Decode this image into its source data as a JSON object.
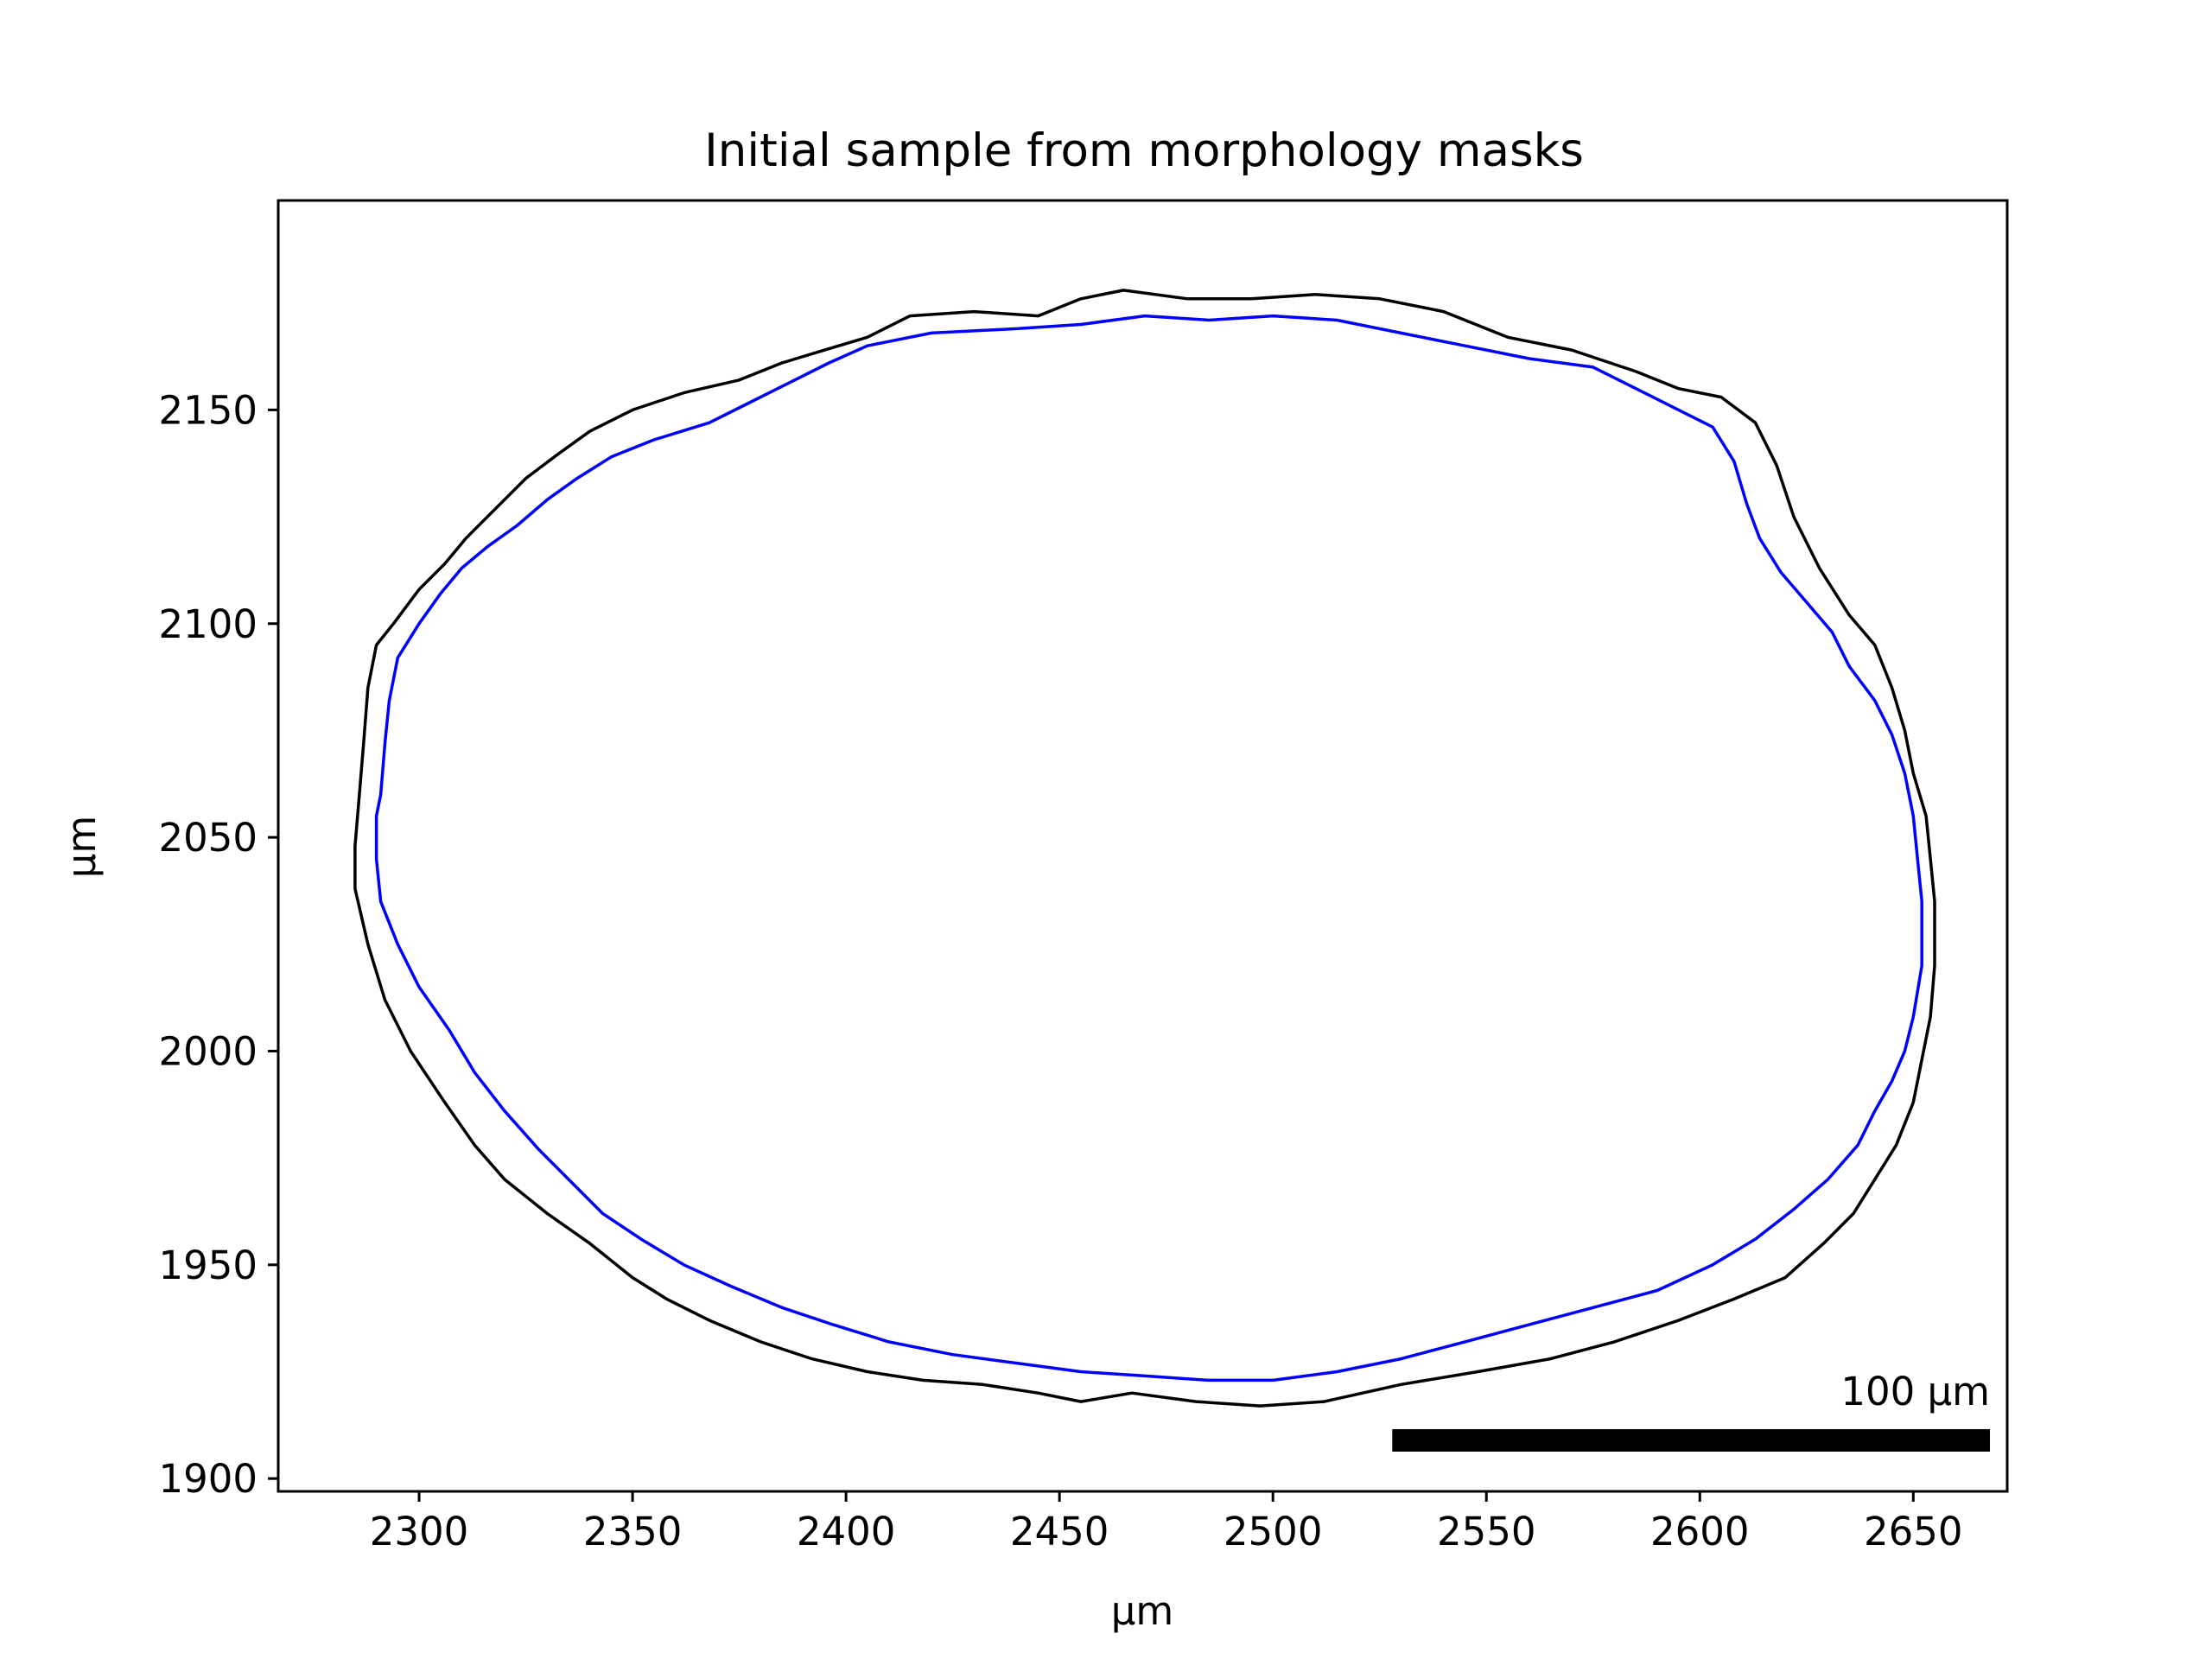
{
  "chart_data": {
    "type": "line",
    "title": "Initial sample from morphology masks",
    "xlabel": "µm",
    "ylabel": "µm",
    "xlim": [
      2267,
      2672
    ],
    "ylim": [
      1897,
      2199
    ],
    "xticks": [
      2300,
      2350,
      2400,
      2450,
      2500,
      2550,
      2600,
      2650
    ],
    "yticks": [
      1900,
      1950,
      2000,
      2050,
      2100,
      2150
    ],
    "grid": false,
    "legend": null,
    "series": [
      {
        "color": "#000000",
        "points": [
          [
            2286,
            2060
          ],
          [
            2287,
            2072
          ],
          [
            2288,
            2085
          ],
          [
            2290,
            2095
          ],
          [
            2294,
            2100
          ],
          [
            2300,
            2108
          ],
          [
            2306,
            2114
          ],
          [
            2311,
            2120
          ],
          [
            2318,
            2127
          ],
          [
            2325,
            2134
          ],
          [
            2333,
            2140
          ],
          [
            2340,
            2145
          ],
          [
            2350,
            2150
          ],
          [
            2362,
            2154
          ],
          [
            2375,
            2157
          ],
          [
            2385,
            2161
          ],
          [
            2395,
            2164
          ],
          [
            2405,
            2167
          ],
          [
            2415,
            2172
          ],
          [
            2430,
            2173
          ],
          [
            2445,
            2172
          ],
          [
            2455,
            2176
          ],
          [
            2465,
            2178
          ],
          [
            2480,
            2176
          ],
          [
            2495,
            2176
          ],
          [
            2510,
            2177
          ],
          [
            2525,
            2176
          ],
          [
            2540,
            2173
          ],
          [
            2555,
            2167
          ],
          [
            2570,
            2164
          ],
          [
            2585,
            2159
          ],
          [
            2595,
            2155
          ],
          [
            2605,
            2153
          ],
          [
            2613,
            2147
          ],
          [
            2618,
            2137
          ],
          [
            2622,
            2125
          ],
          [
            2628,
            2113
          ],
          [
            2635,
            2102
          ],
          [
            2641,
            2095
          ],
          [
            2645,
            2085
          ],
          [
            2648,
            2075
          ],
          [
            2650,
            2065
          ],
          [
            2653,
            2055
          ],
          [
            2654,
            2045
          ],
          [
            2655,
            2035
          ],
          [
            2655,
            2020
          ],
          [
            2654,
            2008
          ],
          [
            2652,
            1998
          ],
          [
            2650,
            1988
          ],
          [
            2646,
            1978
          ],
          [
            2641,
            1970
          ],
          [
            2636,
            1962
          ],
          [
            2629,
            1955
          ],
          [
            2620,
            1947
          ],
          [
            2608,
            1942
          ],
          [
            2595,
            1937
          ],
          [
            2580,
            1932
          ],
          [
            2565,
            1928
          ],
          [
            2548,
            1925
          ],
          [
            2530,
            1922
          ],
          [
            2512,
            1918
          ],
          [
            2497,
            1917
          ],
          [
            2482,
            1918
          ],
          [
            2467,
            1920
          ],
          [
            2455,
            1918
          ],
          [
            2445,
            1920
          ],
          [
            2432,
            1922
          ],
          [
            2418,
            1923
          ],
          [
            2405,
            1925
          ],
          [
            2392,
            1928
          ],
          [
            2380,
            1932
          ],
          [
            2368,
            1937
          ],
          [
            2358,
            1942
          ],
          [
            2350,
            1947
          ],
          [
            2340,
            1955
          ],
          [
            2330,
            1962
          ],
          [
            2320,
            1970
          ],
          [
            2313,
            1978
          ],
          [
            2306,
            1988
          ],
          [
            2298,
            2000
          ],
          [
            2292,
            2012
          ],
          [
            2288,
            2025
          ],
          [
            2285,
            2038
          ],
          [
            2285,
            2048
          ]
        ]
      },
      {
        "color": "#0000ff",
        "points": [
          [
            2291,
            2060
          ],
          [
            2292,
            2072
          ],
          [
            2293,
            2082
          ],
          [
            2295,
            2092
          ],
          [
            2300,
            2100
          ],
          [
            2305,
            2107
          ],
          [
            2310,
            2113
          ],
          [
            2316,
            2118
          ],
          [
            2323,
            2123
          ],
          [
            2330,
            2129
          ],
          [
            2337,
            2134
          ],
          [
            2345,
            2139
          ],
          [
            2355,
            2143
          ],
          [
            2368,
            2147
          ],
          [
            2378,
            2152
          ],
          [
            2388,
            2157
          ],
          [
            2396,
            2161
          ],
          [
            2405,
            2165
          ],
          [
            2420,
            2168
          ],
          [
            2440,
            2169
          ],
          [
            2455,
            2170
          ],
          [
            2470,
            2172
          ],
          [
            2485,
            2171
          ],
          [
            2500,
            2172
          ],
          [
            2515,
            2171
          ],
          [
            2530,
            2168
          ],
          [
            2545,
            2165
          ],
          [
            2560,
            2162
          ],
          [
            2575,
            2160
          ],
          [
            2585,
            2155
          ],
          [
            2595,
            2150
          ],
          [
            2603,
            2146
          ],
          [
            2608,
            2138
          ],
          [
            2611,
            2128
          ],
          [
            2614,
            2120
          ],
          [
            2619,
            2112
          ],
          [
            2625,
            2105
          ],
          [
            2631,
            2098
          ],
          [
            2635,
            2090
          ],
          [
            2641,
            2082
          ],
          [
            2645,
            2074
          ],
          [
            2648,
            2065
          ],
          [
            2650,
            2055
          ],
          [
            2651,
            2045
          ],
          [
            2652,
            2035
          ],
          [
            2652,
            2020
          ],
          [
            2650,
            2008
          ],
          [
            2648,
            2000
          ],
          [
            2645,
            1993
          ],
          [
            2641,
            1986
          ],
          [
            2637,
            1978
          ],
          [
            2630,
            1970
          ],
          [
            2622,
            1963
          ],
          [
            2613,
            1956
          ],
          [
            2603,
            1950
          ],
          [
            2590,
            1944
          ],
          [
            2575,
            1940
          ],
          [
            2560,
            1936
          ],
          [
            2545,
            1932
          ],
          [
            2530,
            1928
          ],
          [
            2515,
            1925
          ],
          [
            2500,
            1923
          ],
          [
            2485,
            1923
          ],
          [
            2470,
            1924
          ],
          [
            2455,
            1925
          ],
          [
            2440,
            1927
          ],
          [
            2425,
            1929
          ],
          [
            2410,
            1932
          ],
          [
            2397,
            1936
          ],
          [
            2385,
            1940
          ],
          [
            2373,
            1945
          ],
          [
            2362,
            1950
          ],
          [
            2352,
            1956
          ],
          [
            2343,
            1962
          ],
          [
            2335,
            1970
          ],
          [
            2328,
            1977
          ],
          [
            2320,
            1986
          ],
          [
            2313,
            1995
          ],
          [
            2307,
            2005
          ],
          [
            2300,
            2015
          ],
          [
            2295,
            2025
          ],
          [
            2291,
            2035
          ],
          [
            2290,
            2045
          ],
          [
            2290,
            2055
          ]
        ]
      }
    ],
    "scalebar": {
      "label": "100 µm",
      "length": 140,
      "position": "bottom-right"
    }
  }
}
